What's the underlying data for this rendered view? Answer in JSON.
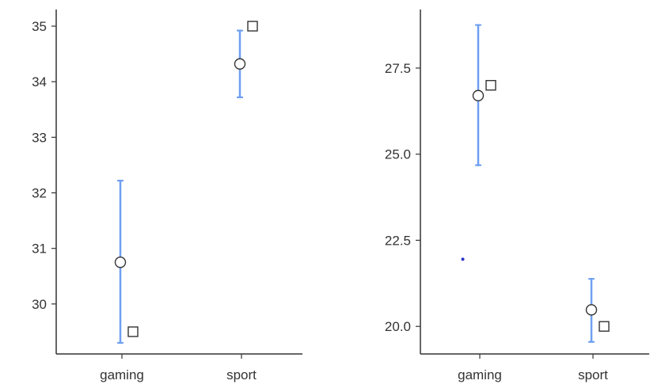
{
  "colors": {
    "error_bar": "#6f9ff2",
    "axis": "#333333",
    "stray_dot": "#2b35c9",
    "background": "#ffffff"
  },
  "chart_data": [
    {
      "type": "scatter",
      "categories": [
        "gaming",
        "sport"
      ],
      "y_ticks": [
        "30",
        "31",
        "32",
        "33",
        "34",
        "35"
      ],
      "ylim": [
        29.1,
        35.3
      ],
      "series": [
        {
          "marker": "circle",
          "values": [
            30.75,
            34.32
          ]
        },
        {
          "marker": "square",
          "values": [
            29.5,
            35.0
          ]
        }
      ],
      "error_bars": [
        {
          "lower": 29.3,
          "upper": 32.22
        },
        {
          "lower": 33.72,
          "upper": 34.92
        }
      ],
      "title": "",
      "xlabel": "",
      "ylabel": "",
      "grid": false,
      "legend": "none"
    },
    {
      "type": "scatter",
      "categories": [
        "gaming",
        "sport"
      ],
      "y_ticks": [
        "20.0",
        "22.5",
        "25.0",
        "27.5"
      ],
      "ylim": [
        19.2,
        29.2
      ],
      "series": [
        {
          "marker": "circle",
          "values": [
            26.7,
            20.48
          ]
        },
        {
          "marker": "square",
          "values": [
            27.0,
            20.0
          ]
        }
      ],
      "error_bars": [
        {
          "lower": 24.68,
          "upper": 28.75
        },
        {
          "lower": 19.55,
          "upper": 21.38
        }
      ],
      "stray_points": [
        {
          "category": "gaming",
          "offset_from_category": -0.15,
          "value": 21.95
        }
      ],
      "title": "",
      "xlabel": "",
      "ylabel": "",
      "grid": false,
      "legend": "none"
    }
  ]
}
